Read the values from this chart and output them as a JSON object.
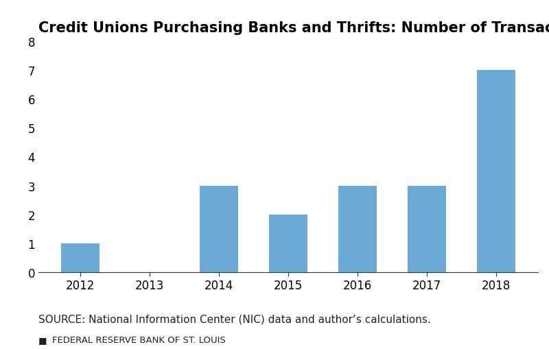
{
  "title": "Credit Unions Purchasing Banks and Thrifts: Number of Transactions per Year",
  "categories": [
    "2012",
    "2013",
    "2014",
    "2015",
    "2016",
    "2017",
    "2018"
  ],
  "values": [
    1,
    0,
    3,
    2,
    3,
    3,
    7
  ],
  "bar_color": "#6aaad4",
  "ylim": [
    0,
    8
  ],
  "yticks": [
    0,
    1,
    2,
    3,
    4,
    5,
    6,
    7,
    8
  ],
  "source_text": "SOURCE: National Information Center (NIC) data and author’s calculations.",
  "footer_text": "FEDERAL RESERVE BANK OF ST. LOUIS",
  "title_fontsize": 15,
  "tick_fontsize": 12,
  "source_fontsize": 11,
  "footer_fontsize": 9.5,
  "background_color": "#ffffff"
}
